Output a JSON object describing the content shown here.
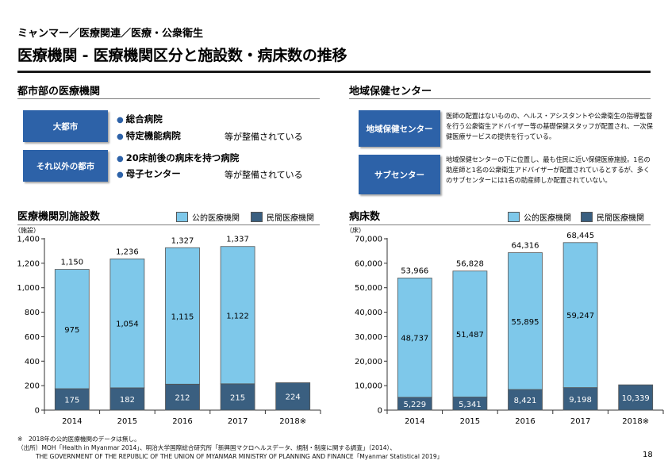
{
  "header": {
    "breadcrumb": "ミャンマー／医療関連／医療・公衆衛生",
    "title": "医療機関 - 医療機関区分と施設数・病床数の推移"
  },
  "urban_section": {
    "title": "都市部の医療機関",
    "rows": [
      {
        "label": "大都市",
        "items": [
          "総合病院",
          "特定機能病院"
        ],
        "suffix": "等が整備されている"
      },
      {
        "label": "それ以外の都市",
        "items": [
          "20床前後の病床を持つ病院",
          "母子センター"
        ],
        "suffix": "等が整備されている"
      }
    ]
  },
  "regional_section": {
    "title": "地域保健センター",
    "rows": [
      {
        "label": "地域保健センター",
        "text": "医師の配置はないものの、ヘルス・アシスタントや公衆衛生の指導監督を行う公衆衛生アドバイザー等の基礎保健スタッフが配置され、一次保健医療サービスの提供を行っている。"
      },
      {
        "label": "サブセンター",
        "text": "地域保健センターの下に位置し、最も住民に近い保健医療施設。1名の助産師と1名の公衆衛生アドバイザーが配置されているとするが、多くのサブセンターには1名の助産師しか配置されていない。"
      }
    ]
  },
  "colors": {
    "public": "#7ec8ea",
    "private": "#3a5f80",
    "outline": "#555555",
    "accent": "#2d62a8"
  },
  "chart_data": [
    {
      "type": "bar",
      "stacked": true,
      "title": "医療機関別施設数",
      "unit": "（施設）",
      "categories": [
        "2014",
        "2015",
        "2016",
        "2017",
        "2018※"
      ],
      "series": [
        {
          "name": "民間医療機関",
          "values": [
            175,
            182,
            212,
            215,
            224
          ],
          "labels": [
            "175",
            "182",
            "212",
            "215",
            "224"
          ]
        },
        {
          "name": "公的医療機関",
          "values": [
            975,
            1054,
            1115,
            1122,
            null
          ],
          "labels": [
            "975",
            "1,054",
            "1,115",
            "1,122",
            ""
          ]
        }
      ],
      "totals": [
        "1,150",
        "1,236",
        "1,327",
        "1,337",
        ""
      ],
      "ylim": [
        0,
        1400
      ],
      "yticks": [
        0,
        200,
        400,
        600,
        800,
        1000,
        1200,
        1400
      ],
      "ytick_labels": [
        "0",
        "200",
        "400",
        "600",
        "800",
        "1,000",
        "1,200",
        "1,400"
      ],
      "legend": [
        "公的医療機関",
        "民間医療機関"
      ]
    },
    {
      "type": "bar",
      "stacked": true,
      "title": "病床数",
      "unit": "（床）",
      "categories": [
        "2014",
        "2015",
        "2016",
        "2017",
        "2018※"
      ],
      "series": [
        {
          "name": "民間医療機関",
          "values": [
            5229,
            5341,
            8421,
            9198,
            10339
          ],
          "labels": [
            "5,229",
            "5,341",
            "8,421",
            "9,198",
            "10,339"
          ]
        },
        {
          "name": "公的医療機関",
          "values": [
            48737,
            51487,
            55895,
            59247,
            null
          ],
          "labels": [
            "48,737",
            "51,487",
            "55,895",
            "59,247",
            ""
          ]
        }
      ],
      "totals": [
        "53,966",
        "56,828",
        "64,316",
        "68,445",
        ""
      ],
      "ylim": [
        0,
        70000
      ],
      "yticks": [
        0,
        10000,
        20000,
        30000,
        40000,
        50000,
        60000,
        70000
      ],
      "ytick_labels": [
        "0",
        "10,000",
        "20,000",
        "30,000",
        "40,000",
        "50,000",
        "60,000",
        "70,000"
      ],
      "legend": [
        "公的医療機関",
        "民間医療機関"
      ]
    }
  ],
  "footer": {
    "note": "※　2018年の公的医療機関のデータは無し。",
    "source1": "（出所）MOH「Health in Myanmar 2014」、明治大学国際総合研究所「新興国マクロヘルスデータ、規制・制度に関する調査」（2014）、",
    "source2": "THE GOVERNMENT OF THE REPUBLIC OF THE UNION OF MYANMAR MINISTRY OF PLANNING AND FINANCE「Myanmar Statistical 2019」",
    "page": "18"
  }
}
